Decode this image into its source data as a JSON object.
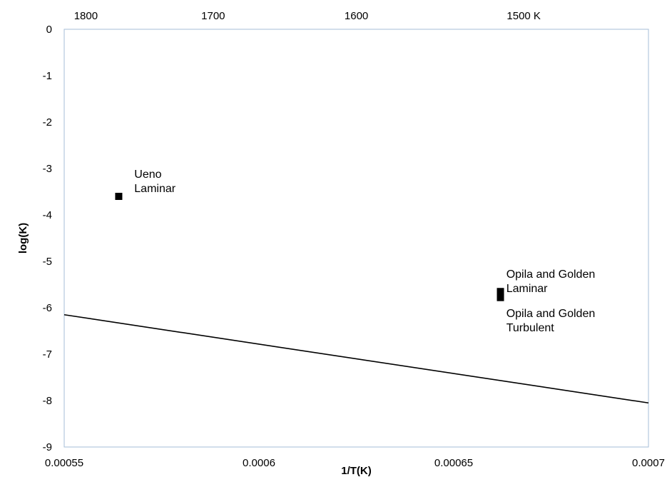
{
  "chart_data": {
    "type": "scatter",
    "title": "",
    "xlabel": "1/T(K)",
    "ylabel": "log(K)",
    "xlim": [
      0.00055,
      0.0007
    ],
    "ylim": [
      -9,
      0
    ],
    "x_ticks": [
      0.00055,
      0.0006,
      0.00065,
      0.0007
    ],
    "x_tick_labels": [
      "0.00055",
      "0.0006",
      "0.00065",
      "0.0007"
    ],
    "y_ticks": [
      0,
      -1,
      -2,
      -3,
      -4,
      -5,
      -6,
      -7,
      -8,
      -9
    ],
    "y_tick_labels": [
      "0",
      "-1",
      "-2",
      "-3",
      "-4",
      "-5",
      "-6",
      "-7",
      "-8",
      "-9"
    ],
    "secondary_x_axis": {
      "position": "top",
      "unit": "K",
      "ticks": [
        1800,
        1700,
        1600,
        1500
      ],
      "tick_labels": [
        "1800",
        "1700",
        "1600",
        "1500 K"
      ]
    },
    "grid": false,
    "series": [
      {
        "kind": "line",
        "color": "#000000",
        "x": [
          0.00055,
          0.0007
        ],
        "y": [
          -6.15,
          -8.05
        ]
      },
      {
        "kind": "points",
        "marker": "square",
        "color": "#000000",
        "x": [
          0.000564,
          0.000662,
          0.000662
        ],
        "y": [
          -3.6,
          -5.65,
          -5.78
        ]
      }
    ],
    "annotations": [
      {
        "lines": [
          "Ueno",
          "Laminar"
        ],
        "x": 0.000568,
        "y": -3.2
      },
      {
        "lines": [
          "Opila and Golden",
          "Laminar"
        ],
        "x": 0.0006635,
        "y": -5.35
      },
      {
        "lines": [
          "Opila and Golden",
          "Turbulent"
        ],
        "x": 0.0006635,
        "y": -6.2
      }
    ]
  }
}
